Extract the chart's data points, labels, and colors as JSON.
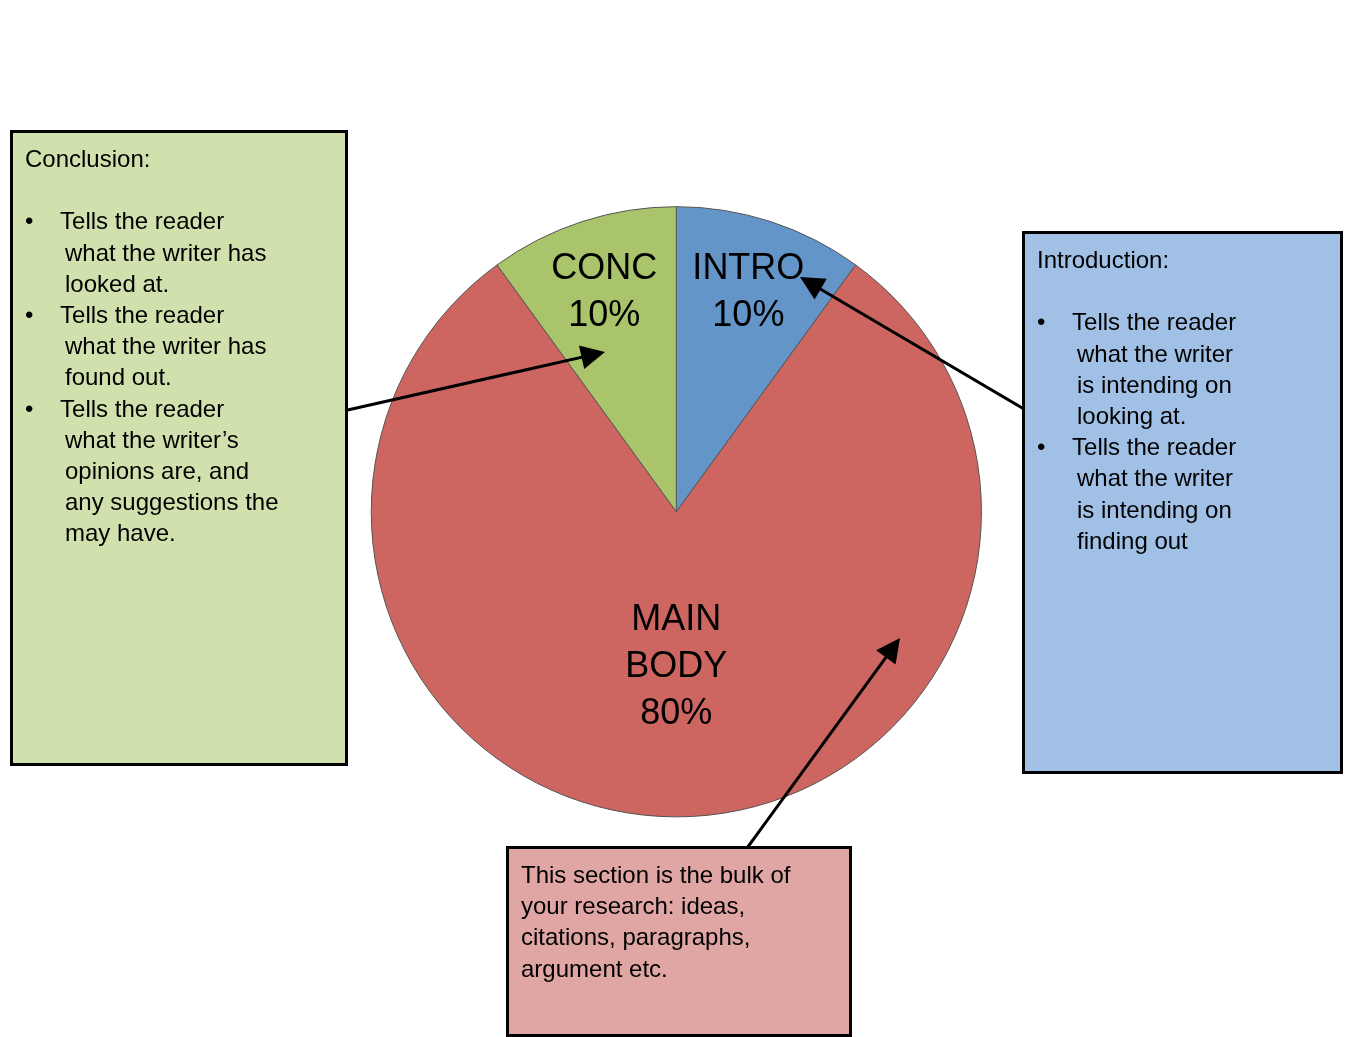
{
  "chart_data": {
    "type": "pie",
    "categories": [
      "INTRO",
      "MAIN BODY",
      "CONC"
    ],
    "values": [
      10,
      80,
      10
    ],
    "value_labels": [
      "10%",
      "80%",
      "10%"
    ],
    "colors": [
      "#6495c8",
      "#cd6660",
      "#a9c46a"
    ],
    "annotations": [
      "Conclusion:\n\n•    Tells the reader\n      what the writer has\n      looked at.\n•    Tells the reader\n      what the writer has\n      found out.\n•    Tells the reader\n      what the writer’s\n      opinions are, and\n      any suggestions the\n      may have.",
      "Introduction:\n\n•    Tells the reader\n      what the writer\n      is intending on\n      looking at.\n•    Tells the reader\n      what the writer\n      is intending on\n      finding out",
      "This section is the bulk of\nyour research: ideas,\ncitations, paragraphs,\nargument etc."
    ]
  }
}
